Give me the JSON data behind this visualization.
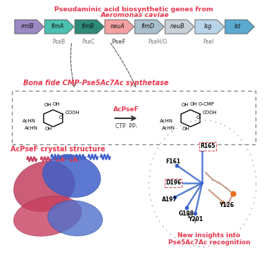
{
  "title": "Pseudaminic acid biosynthetic genes from Aeromonas caviae",
  "title_color": "#E8384F",
  "title_italic_part": "Aeromonas caviae",
  "genes": [
    "rmlB",
    "flmA",
    "flmB",
    "neuA",
    "flmD",
    "neuB",
    "lsg",
    "lst"
  ],
  "gene_colors": [
    "#9B89C4",
    "#4BBFB0",
    "#2E8B78",
    "#F4A0A0",
    "#A8BFCC",
    "#C8D0D8",
    "#B8D4E8",
    "#5BAAD0"
  ],
  "gene_labels_below": [
    "PseB",
    "PseC",
    "PseF",
    "PseH/G",
    "PseI"
  ],
  "gene_labels_bold": [
    "PseF"
  ],
  "bona_fide_text": "Bona fide CMP-Pse5Ac7Ac synthetase",
  "acpsef_label": "AcPseF",
  "ctp_ppi_label": "CTP  PPᵢ",
  "crystal_label": "AcPseF crystal structure",
  "crystal_label_color": "#E8384F",
  "residues": [
    "R165",
    "F161",
    "D196",
    "A197",
    "G198",
    "Y201",
    "Y126"
  ],
  "residues_boxed": [
    "R165",
    "D196"
  ],
  "new_insights": "New insights into\nPse5Ac7Ac recognition",
  "new_insights_color": "#E8384F",
  "bg_color": "#FFFFFF",
  "gene_text_color": "#000000",
  "bona_fide_color": "#E8384F",
  "arrow_color": "#333333",
  "dashed_box_color": "#555555"
}
